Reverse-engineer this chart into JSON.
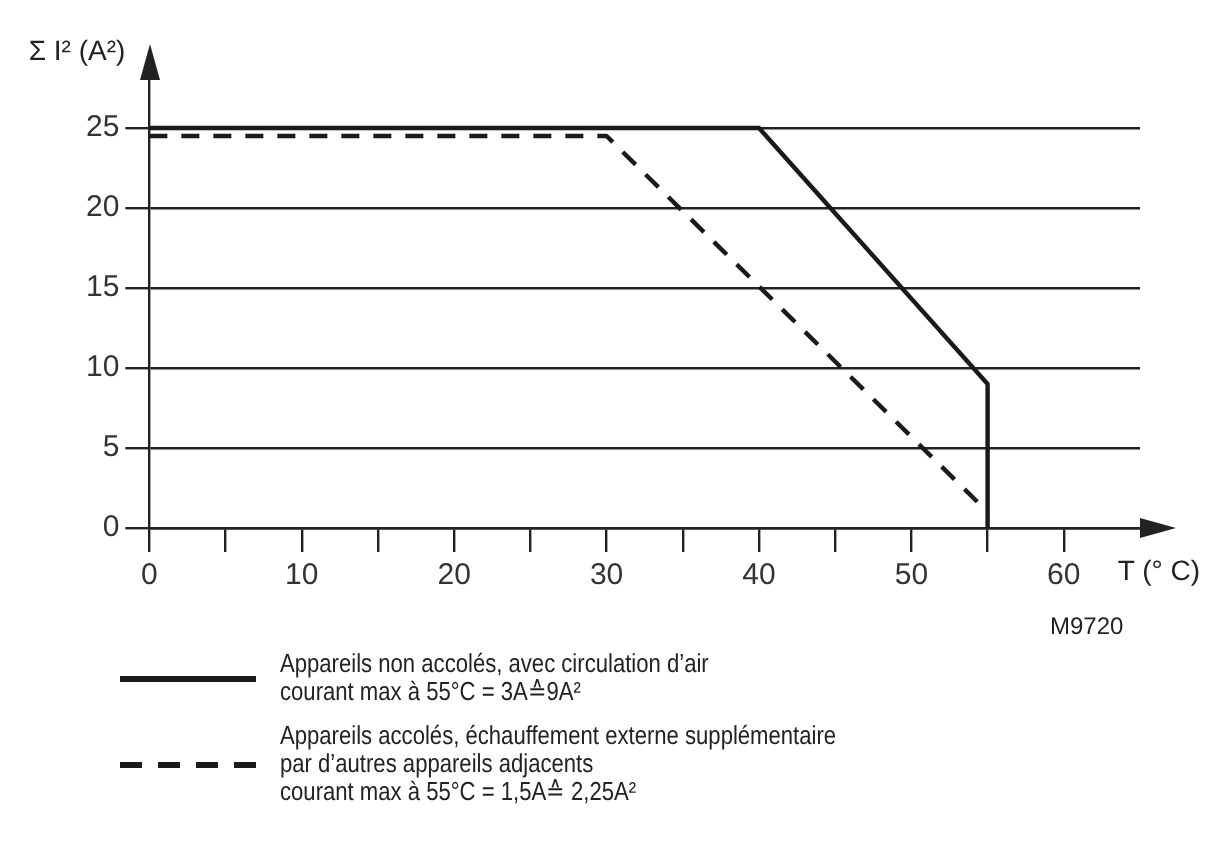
{
  "chart_data": {
    "type": "line",
    "xlabel": "T (° C)",
    "ylabel": "Σ I² (A²)",
    "xlim": [
      0,
      65
    ],
    "ylim": [
      0,
      28
    ],
    "xticks": [
      0,
      {
        "value": 5,
        "label": null
      },
      10,
      {
        "value": 15,
        "label": null
      },
      20,
      {
        "value": 25,
        "label": null
      },
      30,
      {
        "value": 35,
        "label": null
      },
      40,
      {
        "value": 45,
        "label": null
      },
      50,
      {
        "value": 55,
        "label": null
      },
      60
    ],
    "yticks": [
      0,
      5,
      10,
      15,
      20,
      25
    ],
    "grid": "y",
    "legend": "bottom",
    "marker": "none",
    "series": [
      {
        "name": "Appareils non accolés, avec circulation d’air\ncourant max à 55°C = 3A≙9A²",
        "color": "#1a1a1a",
        "line_style": "solid",
        "x": [
          0,
          40,
          55,
          55
        ],
        "values": [
          25,
          25,
          9,
          0
        ]
      },
      {
        "name": "Appareils accolés, échauffement externe supplémentaire\npar d’autres appareils adjacents\ncourant max à 55°C = 1,5A≙ 2,25A²",
        "color": "#1a1a1a",
        "line_style": "dashed",
        "x": [
          0,
          30,
          55
        ],
        "values": [
          24.5,
          24.5,
          1
        ]
      }
    ],
    "annotations": [
      "M9720"
    ]
  }
}
